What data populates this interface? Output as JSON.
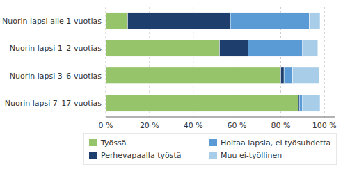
{
  "chart_data": {
    "type": "bar",
    "orientation": "horizontal",
    "stacked": true,
    "categories": [
      "Nuorin lapsi alle 1-vuotias",
      "Nuorin lapsi 1–2-vuotias",
      "Nuorin lapsi 3–6-vuotias",
      "Nuorin lapsi 7–17-vuotias"
    ],
    "series": [
      {
        "name": "Työssä",
        "color": "#96c46a",
        "values": [
          10,
          52,
          80,
          88
        ]
      },
      {
        "name": "Perhevapaalla työstä",
        "color": "#1e3f6e",
        "values": [
          47,
          13,
          1.5,
          0.5
        ]
      },
      {
        "name": "Hoitaa lapsia, ei työsuhdetta",
        "color": "#5b9bd5",
        "values": [
          36,
          25,
          4,
          1.5
        ]
      },
      {
        "name": "Muu ei-työllinen",
        "color": "#a8cde8",
        "values": [
          5,
          7,
          12,
          8
        ]
      }
    ],
    "xlim": [
      0,
      105
    ],
    "xticks": [
      {
        "value": 0,
        "label": "0 %"
      },
      {
        "value": 20,
        "label": "20 %"
      },
      {
        "value": 40,
        "label": "40 %"
      },
      {
        "value": 60,
        "label": "60 %"
      },
      {
        "value": 80,
        "label": "80 %"
      },
      {
        "value": 100,
        "label": "100 %"
      }
    ],
    "grid": true,
    "legend": "bottom"
  }
}
